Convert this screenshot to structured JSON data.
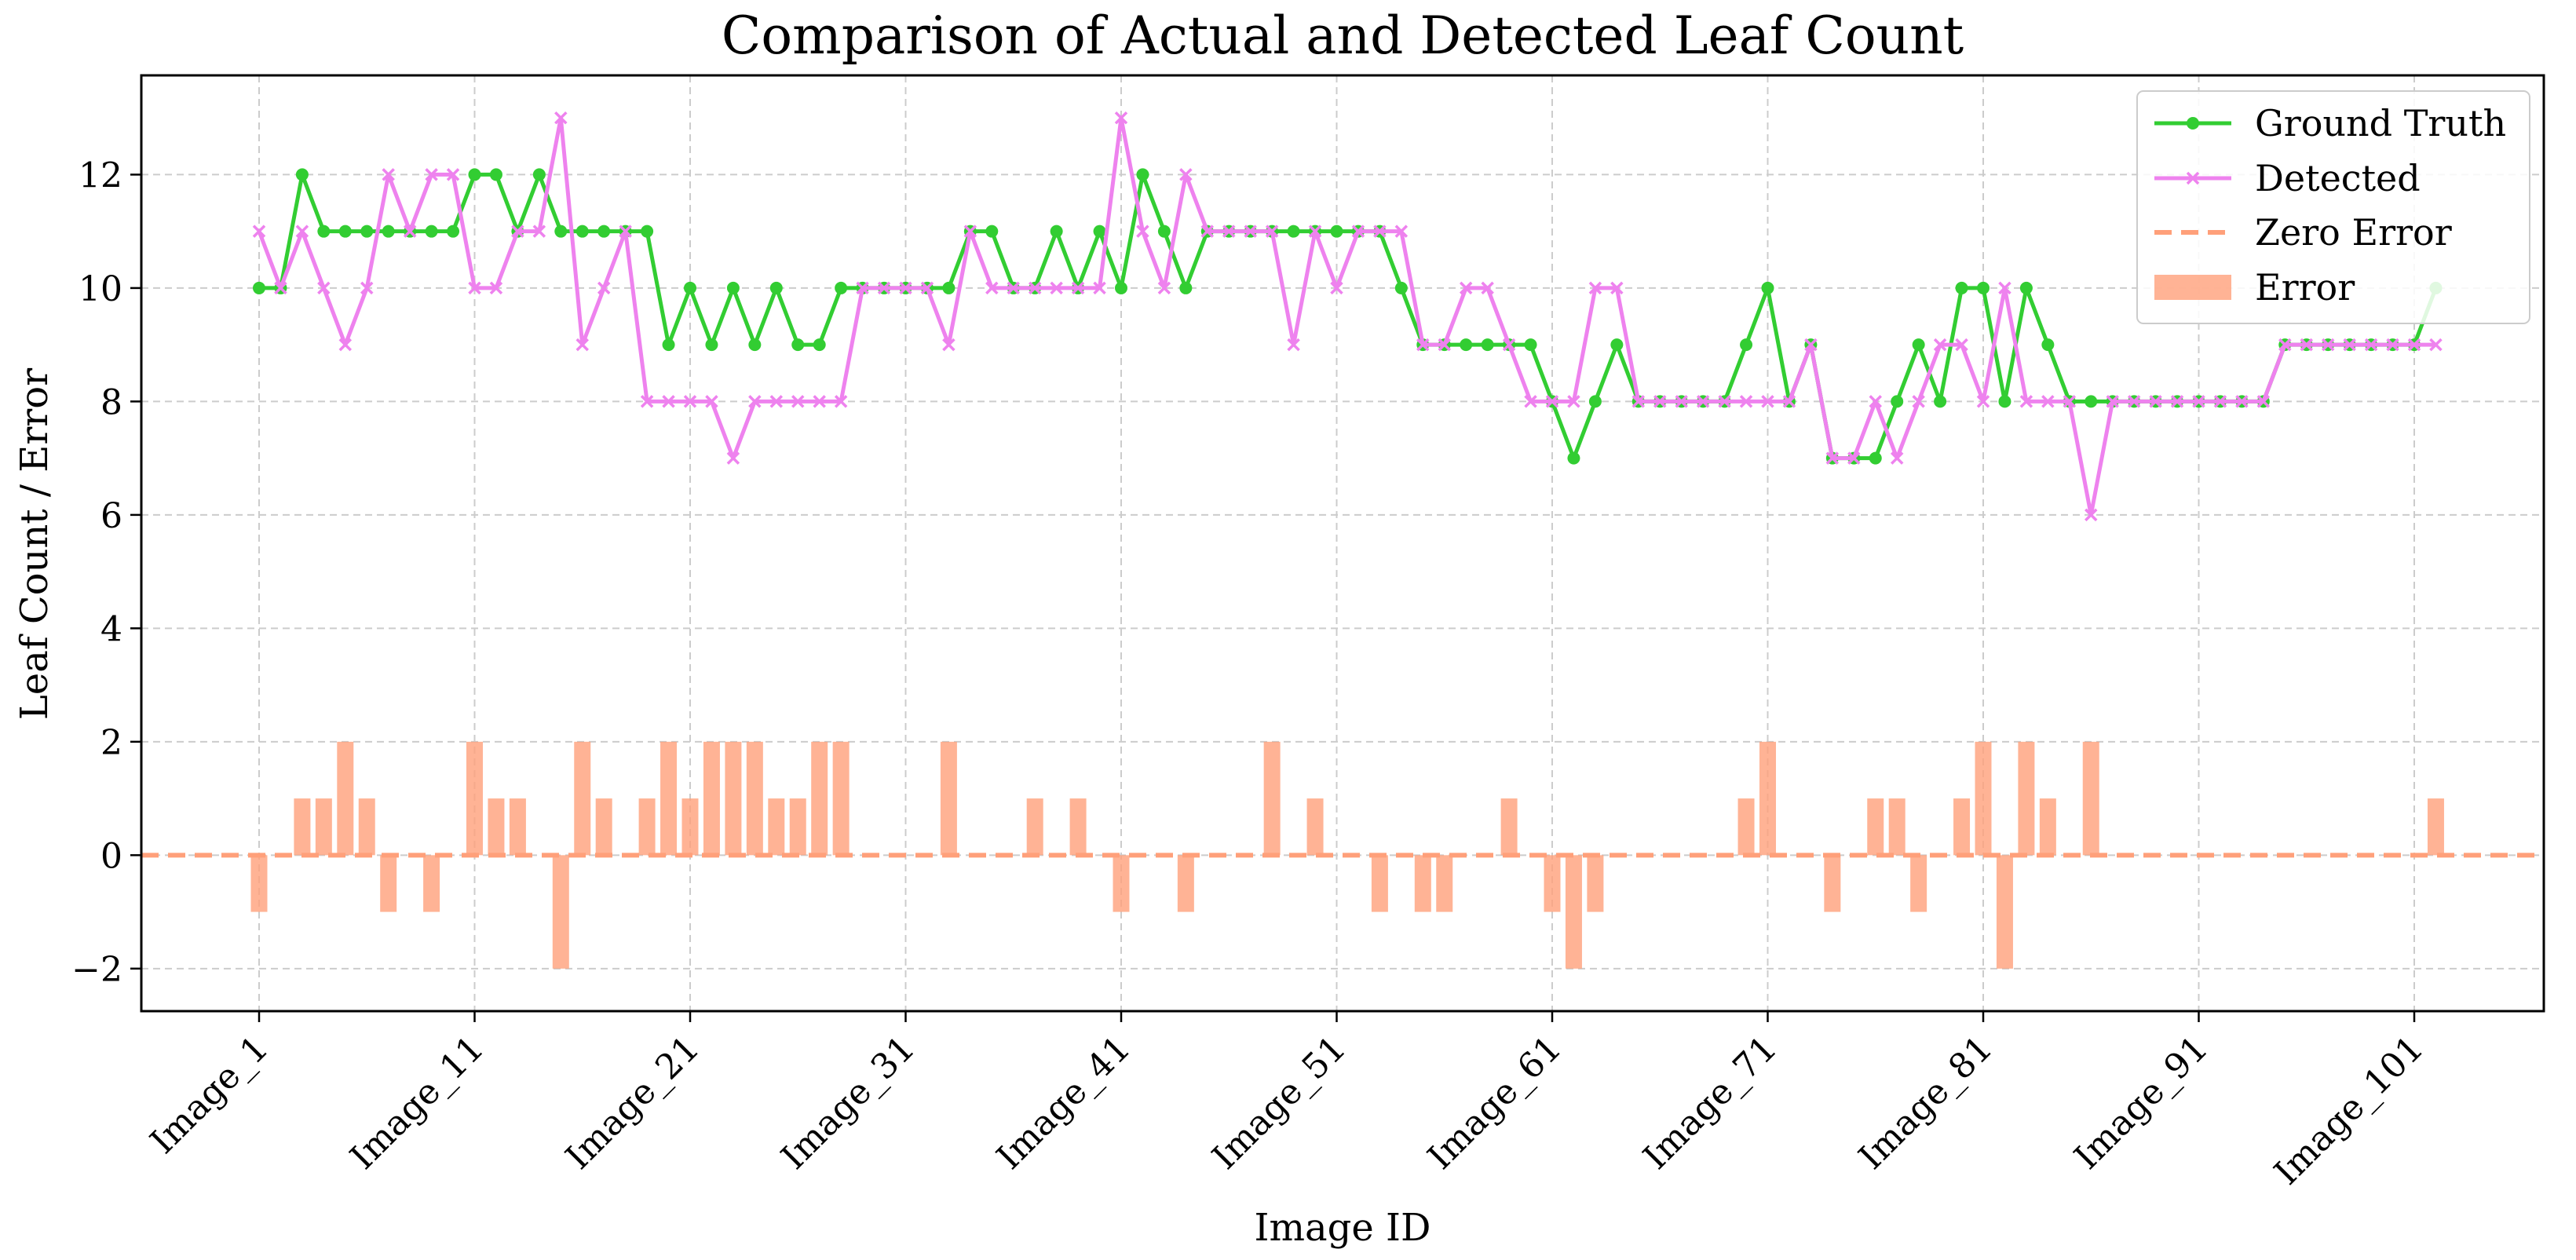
{
  "chart_data": {
    "type": "line",
    "title": "Comparison of Actual and Detected Leaf Count",
    "xlabel": "Image ID",
    "ylabel": "Leaf Count / Error",
    "ylim": [
      -2.75,
      13.75
    ],
    "yticks": [
      -2,
      0,
      2,
      4,
      6,
      8,
      10,
      12
    ],
    "xtick_labels": [
      "Image_1",
      "Image_11",
      "Image_21",
      "Image_31",
      "Image_41",
      "Image_51",
      "Image_61",
      "Image_71",
      "Image_81",
      "Image_91",
      "Image_101"
    ],
    "xtick_indices": [
      1,
      11,
      21,
      31,
      41,
      51,
      61,
      71,
      81,
      91,
      101
    ],
    "grid": true,
    "legend_position": "top-right",
    "n_images": 102,
    "series": [
      {
        "name": "Ground Truth",
        "color": "#32cd32",
        "marker": "circle",
        "values": [
          10,
          10,
          12,
          11,
          11,
          11,
          11,
          11,
          11,
          11,
          12,
          12,
          11,
          12,
          11,
          11,
          11,
          11,
          11,
          9,
          10,
          9,
          10,
          9,
          10,
          9,
          9,
          10,
          10,
          10,
          10,
          10,
          10,
          11,
          11,
          10,
          10,
          11,
          10,
          11,
          10,
          12,
          11,
          10,
          11,
          11,
          11,
          11,
          11,
          11,
          11,
          11,
          11,
          10,
          9,
          9,
          9,
          9,
          9,
          9,
          8,
          7,
          8,
          9,
          8,
          8,
          8,
          8,
          8,
          9,
          10,
          8,
          9,
          7,
          7,
          7,
          8,
          9,
          8,
          10,
          10,
          8,
          10,
          9,
          8,
          8,
          8,
          8,
          8,
          8,
          8,
          8,
          8,
          8,
          9,
          9,
          9,
          9,
          9,
          9,
          9,
          10
        ]
      },
      {
        "name": "Detected",
        "color": "#ee82ee",
        "marker": "x",
        "values": [
          11,
          10,
          11,
          10,
          9,
          10,
          12,
          11,
          12,
          12,
          10,
          10,
          11,
          11,
          13,
          9,
          10,
          11,
          8,
          8,
          8,
          8,
          7,
          8,
          8,
          8,
          8,
          8,
          10,
          10,
          10,
          10,
          9,
          11,
          10,
          10,
          10,
          10,
          10,
          10,
          13,
          11,
          10,
          12,
          11,
          11,
          11,
          11,
          9,
          11,
          10,
          11,
          11,
          11,
          9,
          9,
          10,
          10,
          9,
          8,
          8,
          8,
          10,
          10,
          8,
          8,
          8,
          8,
          8,
          8,
          8,
          8,
          9,
          7,
          7,
          8,
          7,
          8,
          9,
          9,
          8,
          10,
          8,
          8,
          8,
          6,
          8,
          8,
          8,
          8,
          8,
          8,
          8,
          8,
          9,
          9,
          9,
          9,
          9,
          9,
          9,
          9
        ]
      }
    ],
    "error_series": {
      "name": "Error",
      "color": "#ffa07a",
      "values": [
        -1,
        0,
        1,
        1,
        2,
        1,
        -1,
        0,
        -1,
        0,
        2,
        1,
        1,
        0,
        -2,
        2,
        1,
        0,
        1,
        2,
        1,
        2,
        2,
        2,
        1,
        1,
        2,
        2,
        0,
        0,
        0,
        0,
        2,
        0,
        0,
        0,
        1,
        0,
        1,
        0,
        -1,
        0,
        0,
        -1,
        0,
        0,
        0,
        2,
        0,
        1,
        0,
        0,
        -1,
        0,
        -1,
        -1,
        0,
        0,
        1,
        0,
        -1,
        -2,
        -1,
        0,
        0,
        0,
        0,
        0,
        0,
        1,
        2,
        0,
        0,
        -1,
        0,
        1,
        1,
        -1,
        0,
        1,
        2,
        -2,
        2,
        1,
        0,
        2,
        0,
        0,
        0,
        0,
        0,
        0,
        0,
        0,
        0,
        0,
        0,
        0,
        0,
        0,
        0,
        1
      ]
    },
    "reference_line": {
      "name": "Zero Error",
      "value": 0,
      "color": "#ffa07a"
    },
    "legend": [
      "Ground Truth",
      "Detected",
      "Zero Error",
      "Error"
    ]
  }
}
